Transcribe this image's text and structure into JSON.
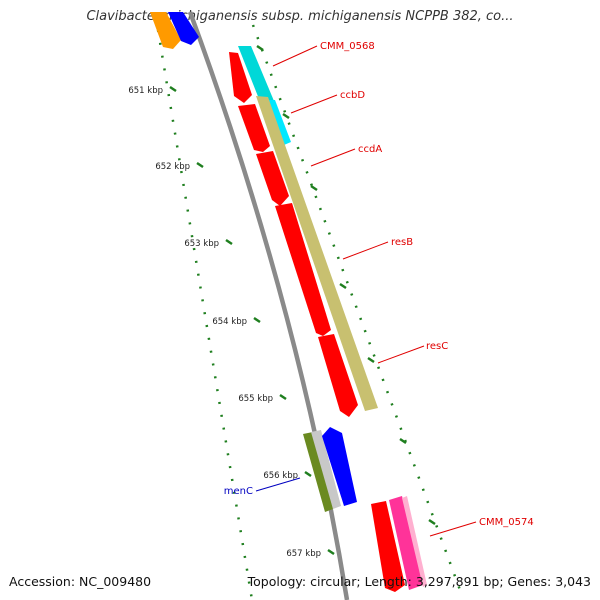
{
  "title": "Clavibacter michiganensis subsp. michiganensis NCPPB 382, co...",
  "footer": {
    "accession": "Accession: NC_009480",
    "topology": "Topology: circular; Length: 3,297,891 bp; Genes: 3,043"
  },
  "ticks": [
    {
      "label": "651 kbp",
      "kbp": 651
    },
    {
      "label": "652 kbp",
      "kbp": 652
    },
    {
      "label": "653 kbp",
      "kbp": 653
    },
    {
      "label": "654 kbp",
      "kbp": 654
    },
    {
      "label": "655 kbp",
      "kbp": 655
    },
    {
      "label": "656 kbp",
      "kbp": 656
    },
    {
      "label": "657 kbp",
      "kbp": 657
    }
  ],
  "genes": [
    {
      "label": "CMM_0568",
      "color": "#e00000"
    },
    {
      "label": "ccbD",
      "color": "#e00000"
    },
    {
      "label": "ccdA",
      "color": "#e00000"
    },
    {
      "label": "resB",
      "color": "#e00000"
    },
    {
      "label": "resC",
      "color": "#e00000"
    },
    {
      "label": "menC",
      "color": "#0000c0"
    },
    {
      "label": "CMM_0574",
      "color": "#e00000"
    }
  ],
  "colors": {
    "cds_red": "#ff0000",
    "cds_blue": "#0000ff",
    "cds_cyan": "#00d8d8",
    "cds_olive": "#c8c070",
    "cds_orange": "#ff9a00",
    "cds_green": "#6a8a20",
    "cds_pink": "#ff3399",
    "backbone": "#888888",
    "tick": "#1f7f1f"
  }
}
